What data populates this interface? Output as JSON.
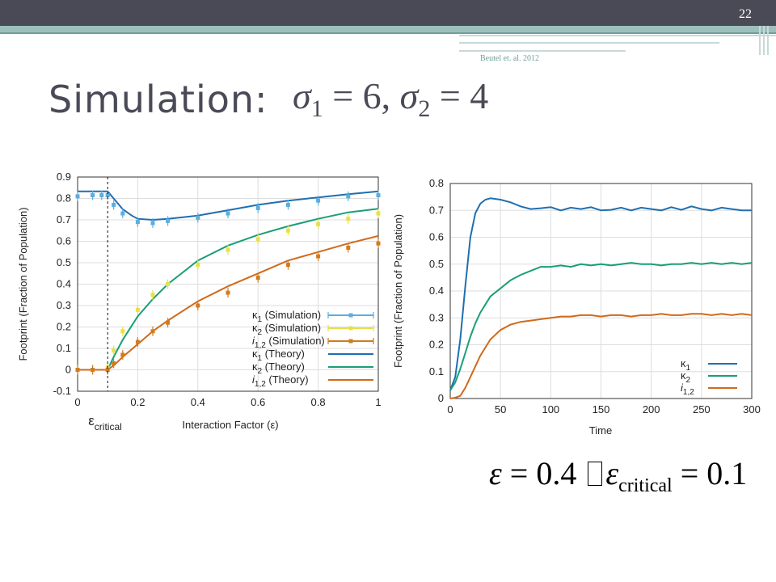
{
  "slide": {
    "number": "22",
    "citation": "Beutel et. al. 2012",
    "title_text": "Simulation:",
    "title_math": {
      "sigma": "σ",
      "sub1": "1",
      "eq1": " = 6,  ",
      "sub2": "2",
      "eq2": " = 4"
    },
    "bottom_math": {
      "eps": "ε",
      "val1": " = 0.4 ",
      "eps2": "ε",
      "sub": "critical",
      "val2": " = 0.1"
    }
  },
  "chart_data": [
    {
      "type": "line",
      "xlabel": "Interaction Factor (ε)",
      "ylabel": "Footprint (Fraction of Population)",
      "xlim": [
        0,
        1
      ],
      "ylim": [
        -0.1,
        0.9
      ],
      "xticks": [
        "0",
        "0.2",
        "0.4",
        "0.6",
        "0.8",
        "1"
      ],
      "yticks": [
        "-0.1",
        "0",
        "0.1",
        "0.2",
        "0.3",
        "0.4",
        "0.5",
        "0.6",
        "0.7",
        "0.8",
        "0.9"
      ],
      "grid": true,
      "legend_position": "bottom-right",
      "annotation": {
        "base": "ε",
        "sub": "critical",
        "x": 0.1
      },
      "legend": [
        {
          "sym": "κ",
          "sub": "1",
          "text": "(Simulation)",
          "color": "#5aaee0"
        },
        {
          "sym": "κ",
          "sub": "2",
          "text": "(Simulation)",
          "color": "#e8e04a"
        },
        {
          "sym": "i",
          "sub": "1,2",
          "text": "(Simulation)",
          "color": "#d07c20"
        },
        {
          "sym": "κ",
          "sub": "1",
          "text": "(Theory)",
          "color": "#1f6fb0"
        },
        {
          "sym": "κ",
          "sub": "2",
          "text": "(Theory)",
          "color": "#1a9e78"
        },
        {
          "sym": "i",
          "sub": "1,2",
          "text": "(Theory)",
          "color": "#d06a1a"
        }
      ],
      "series": [
        {
          "name": "κ1 (Theory)",
          "kind": "line",
          "color": "#1f6fb0",
          "x": [
            0,
            0.1,
            0.12,
            0.15,
            0.18,
            0.2,
            0.25,
            0.3,
            0.4,
            0.5,
            0.6,
            0.7,
            0.8,
            0.9,
            1.0
          ],
          "y": [
            0.833,
            0.833,
            0.8,
            0.75,
            0.72,
            0.705,
            0.7,
            0.705,
            0.72,
            0.745,
            0.77,
            0.79,
            0.805,
            0.82,
            0.833
          ]
        },
        {
          "name": "κ2 (Theory)",
          "kind": "line",
          "color": "#1a9e78",
          "x": [
            0,
            0.1,
            0.12,
            0.15,
            0.2,
            0.25,
            0.3,
            0.4,
            0.5,
            0.6,
            0.7,
            0.8,
            0.9,
            1.0
          ],
          "y": [
            0,
            0,
            0.06,
            0.14,
            0.25,
            0.33,
            0.4,
            0.51,
            0.58,
            0.63,
            0.67,
            0.705,
            0.735,
            0.752
          ]
        },
        {
          "name": "i1,2 (Theory)",
          "kind": "line",
          "color": "#d06a1a",
          "x": [
            0,
            0.1,
            0.12,
            0.15,
            0.2,
            0.25,
            0.3,
            0.4,
            0.5,
            0.6,
            0.7,
            0.8,
            0.9,
            1.0
          ],
          "y": [
            0,
            0,
            0.02,
            0.06,
            0.12,
            0.18,
            0.23,
            0.32,
            0.39,
            0.45,
            0.51,
            0.55,
            0.59,
            0.625
          ]
        },
        {
          "name": "κ1 (Simulation)",
          "kind": "points",
          "color": "#5aaee0",
          "x": [
            0,
            0.05,
            0.08,
            0.1,
            0.12,
            0.15,
            0.2,
            0.25,
            0.3,
            0.4,
            0.5,
            0.6,
            0.7,
            0.8,
            0.9,
            1.0
          ],
          "y": [
            0.81,
            0.815,
            0.815,
            0.815,
            0.77,
            0.73,
            0.69,
            0.685,
            0.695,
            0.71,
            0.73,
            0.755,
            0.77,
            0.79,
            0.81,
            0.815
          ]
        },
        {
          "name": "κ2 (Simulation)",
          "kind": "points",
          "color": "#e8e04a",
          "x": [
            0,
            0.05,
            0.1,
            0.12,
            0.15,
            0.2,
            0.25,
            0.3,
            0.4,
            0.5,
            0.6,
            0.7,
            0.8,
            0.9,
            1.0
          ],
          "y": [
            0,
            0,
            0.01,
            0.09,
            0.18,
            0.28,
            0.35,
            0.4,
            0.49,
            0.56,
            0.61,
            0.65,
            0.68,
            0.705,
            0.73
          ]
        },
        {
          "name": "i1,2 (Simulation)",
          "kind": "points",
          "color": "#d07c20",
          "x": [
            0,
            0.05,
            0.1,
            0.12,
            0.15,
            0.2,
            0.25,
            0.3,
            0.4,
            0.5,
            0.6,
            0.7,
            0.8,
            0.9,
            1.0
          ],
          "y": [
            0,
            0,
            0,
            0.03,
            0.07,
            0.13,
            0.18,
            0.22,
            0.3,
            0.36,
            0.43,
            0.49,
            0.53,
            0.57,
            0.59
          ]
        }
      ]
    },
    {
      "type": "line",
      "xlabel": "Time",
      "ylabel": "Footprint (Fraction of Population)",
      "xlim": [
        0,
        300
      ],
      "ylim": [
        0,
        0.8
      ],
      "xticks": [
        "0",
        "50",
        "100",
        "150",
        "200",
        "250",
        "300"
      ],
      "yticks": [
        "0",
        "0.1",
        "0.2",
        "0.3",
        "0.4",
        "0.5",
        "0.6",
        "0.7",
        "0.8"
      ],
      "grid": true,
      "legend_position": "bottom-right",
      "legend": [
        {
          "sym": "κ",
          "sub": "1",
          "color": "#1f6fb0"
        },
        {
          "sym": "κ",
          "sub": "2",
          "color": "#1a9e78"
        },
        {
          "sym": "i",
          "sub": "1,2",
          "color": "#d06a1a"
        }
      ],
      "series": [
        {
          "name": "κ1",
          "color": "#1f6fb0",
          "x": [
            0,
            5,
            10,
            15,
            20,
            25,
            30,
            35,
            40,
            50,
            60,
            70,
            80,
            90,
            100,
            110,
            120,
            130,
            140,
            150,
            160,
            170,
            180,
            190,
            200,
            210,
            220,
            230,
            240,
            250,
            260,
            270,
            280,
            290,
            300
          ],
          "y": [
            0.03,
            0.08,
            0.22,
            0.42,
            0.6,
            0.69,
            0.725,
            0.74,
            0.745,
            0.74,
            0.73,
            0.715,
            0.705,
            0.708,
            0.712,
            0.7,
            0.71,
            0.705,
            0.712,
            0.7,
            0.702,
            0.71,
            0.7,
            0.71,
            0.705,
            0.7,
            0.712,
            0.702,
            0.715,
            0.705,
            0.7,
            0.71,
            0.705,
            0.7,
            0.7
          ]
        },
        {
          "name": "κ2",
          "color": "#1a9e78",
          "x": [
            0,
            5,
            10,
            15,
            20,
            25,
            30,
            40,
            50,
            60,
            70,
            80,
            90,
            100,
            110,
            120,
            130,
            140,
            150,
            160,
            170,
            180,
            190,
            200,
            210,
            220,
            230,
            240,
            250,
            260,
            270,
            280,
            290,
            300
          ],
          "y": [
            0.03,
            0.06,
            0.11,
            0.17,
            0.23,
            0.28,
            0.32,
            0.38,
            0.41,
            0.44,
            0.46,
            0.475,
            0.49,
            0.49,
            0.495,
            0.49,
            0.5,
            0.495,
            0.5,
            0.495,
            0.5,
            0.505,
            0.5,
            0.5,
            0.495,
            0.5,
            0.5,
            0.505,
            0.5,
            0.505,
            0.5,
            0.505,
            0.5,
            0.505
          ]
        },
        {
          "name": "i1,2",
          "color": "#d06a1a",
          "x": [
            0,
            5,
            10,
            15,
            20,
            25,
            30,
            40,
            50,
            60,
            70,
            80,
            90,
            100,
            110,
            120,
            130,
            140,
            150,
            160,
            170,
            180,
            190,
            200,
            210,
            220,
            230,
            240,
            250,
            260,
            270,
            280,
            290,
            300
          ],
          "y": [
            0,
            0.003,
            0.01,
            0.04,
            0.08,
            0.12,
            0.16,
            0.22,
            0.255,
            0.275,
            0.285,
            0.29,
            0.295,
            0.3,
            0.305,
            0.305,
            0.31,
            0.31,
            0.305,
            0.31,
            0.31,
            0.305,
            0.31,
            0.31,
            0.315,
            0.31,
            0.31,
            0.315,
            0.315,
            0.31,
            0.315,
            0.31,
            0.315,
            0.31
          ]
        }
      ]
    }
  ]
}
